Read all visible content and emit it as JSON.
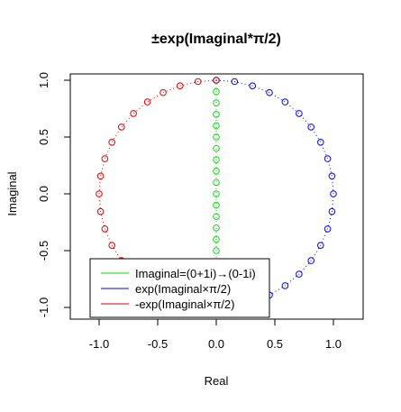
{
  "chart_data": {
    "type": "scatter",
    "title": "±exp(Imaginal*π/2)",
    "xlabel": "Real",
    "ylabel": "Imaginal",
    "xlim": [
      -1.2,
      1.2
    ],
    "ylim": [
      -1.05,
      1.05
    ],
    "x_ticks": [
      -1.0,
      -0.5,
      0.0,
      0.5,
      1.0
    ],
    "x_tick_labels": [
      "-1.0",
      "-0.5",
      "0.0",
      "0.5",
      "1.0"
    ],
    "y_ticks": [
      -1.0,
      -0.5,
      0.0,
      0.5,
      1.0
    ],
    "y_tick_labels": [
      "-1.0",
      "-0.5",
      "0.0",
      "0.5",
      "1.0"
    ],
    "grid": false,
    "legend_position": "bottom-left",
    "series": [
      {
        "name": "Imaginal=(0+1i)→(0-1i)",
        "color": "#00e600",
        "marker": "open-circle",
        "line": "dotted",
        "points": [
          [
            0,
            1.0
          ],
          [
            0,
            0.9
          ],
          [
            0,
            0.8
          ],
          [
            0,
            0.7
          ],
          [
            0,
            0.6
          ],
          [
            0,
            0.5
          ],
          [
            0,
            0.4
          ],
          [
            0,
            0.3
          ],
          [
            0,
            0.2
          ],
          [
            0,
            0.1
          ],
          [
            0,
            0.0
          ],
          [
            0,
            -0.1
          ],
          [
            0,
            -0.2
          ],
          [
            0,
            -0.3
          ],
          [
            0,
            -0.4
          ],
          [
            0,
            -0.5
          ],
          [
            0,
            -0.6
          ],
          [
            0,
            -0.7
          ],
          [
            0,
            -0.8
          ],
          [
            0,
            -0.9
          ],
          [
            0,
            -1.0
          ]
        ]
      },
      {
        "name": "exp(Imaginal×π/2)",
        "color": "#0000ff",
        "marker": "open-circle",
        "line": "dotted",
        "points": [
          [
            0.0,
            1.0
          ],
          [
            0.156,
            0.988
          ],
          [
            0.309,
            0.951
          ],
          [
            0.454,
            0.891
          ],
          [
            0.588,
            0.809
          ],
          [
            0.707,
            0.707
          ],
          [
            0.809,
            0.588
          ],
          [
            0.891,
            0.454
          ],
          [
            0.951,
            0.309
          ],
          [
            0.988,
            0.156
          ],
          [
            1.0,
            0.0
          ],
          [
            0.988,
            -0.156
          ],
          [
            0.951,
            -0.309
          ],
          [
            0.891,
            -0.454
          ],
          [
            0.809,
            -0.588
          ],
          [
            0.707,
            -0.707
          ],
          [
            0.588,
            -0.809
          ],
          [
            0.454,
            -0.891
          ],
          [
            0.309,
            -0.951
          ],
          [
            0.156,
            -0.988
          ],
          [
            0.0,
            -1.0
          ]
        ]
      },
      {
        "name": "-exp(Imaginal×π/2)",
        "color": "#dd0000",
        "marker": "open-circle",
        "line": "dotted",
        "points": [
          [
            0.0,
            1.0
          ],
          [
            -0.156,
            0.988
          ],
          [
            -0.309,
            0.951
          ],
          [
            -0.454,
            0.891
          ],
          [
            -0.588,
            0.809
          ],
          [
            -0.707,
            0.707
          ],
          [
            -0.809,
            0.588
          ],
          [
            -0.891,
            0.454
          ],
          [
            -0.951,
            0.309
          ],
          [
            -0.988,
            0.156
          ],
          [
            -1.0,
            0.0
          ],
          [
            -0.988,
            -0.156
          ],
          [
            -0.951,
            -0.309
          ],
          [
            -0.891,
            -0.454
          ],
          [
            -0.809,
            -0.588
          ],
          [
            -0.707,
            -0.707
          ],
          [
            -0.588,
            -0.809
          ],
          [
            -0.454,
            -0.891
          ],
          [
            -0.309,
            -0.951
          ],
          [
            -0.156,
            -0.988
          ],
          [
            0.0,
            -1.0
          ]
        ]
      }
    ]
  }
}
